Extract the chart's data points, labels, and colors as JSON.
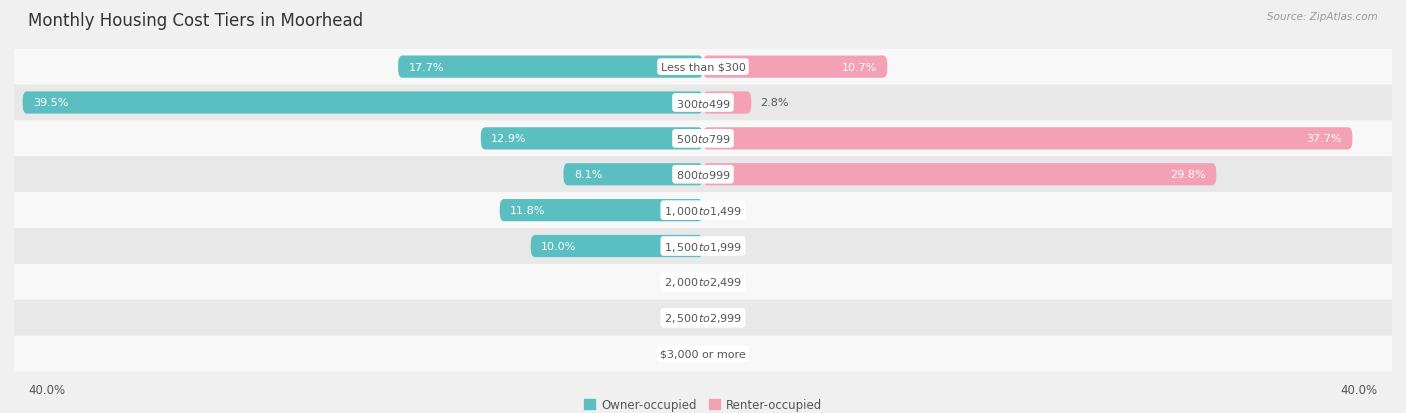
{
  "title": "Monthly Housing Cost Tiers in Moorhead",
  "source": "Source: ZipAtlas.com",
  "categories": [
    "Less than $300",
    "$300 to $499",
    "$500 to $799",
    "$800 to $999",
    "$1,000 to $1,499",
    "$1,500 to $1,999",
    "$2,000 to $2,499",
    "$2,500 to $2,999",
    "$3,000 or more"
  ],
  "owner_values": [
    17.7,
    39.5,
    12.9,
    8.1,
    11.8,
    10.0,
    0.0,
    0.0,
    0.0
  ],
  "renter_values": [
    10.7,
    2.8,
    37.7,
    29.8,
    0.0,
    0.0,
    0.0,
    0.0,
    0.0
  ],
  "owner_color": "#5bbfc2",
  "renter_color": "#f4a0b5",
  "owner_label": "Owner-occupied",
  "renter_label": "Renter-occupied",
  "xlim": 40.0,
  "bar_height": 0.62,
  "bg_color": "#f0f0f0",
  "row_color_odd": "#f8f8f8",
  "row_color_even": "#e8e8e8",
  "title_color": "#333333",
  "label_color": "#555555",
  "value_color_inside": "#ffffff",
  "value_color_outside": "#555555",
  "center_label_bg": "#ffffff",
  "title_fontsize": 12,
  "axis_fontsize": 8.5,
  "bar_label_fontsize": 8,
  "cat_label_fontsize": 8,
  "source_fontsize": 7.5,
  "inside_threshold": 5.0
}
